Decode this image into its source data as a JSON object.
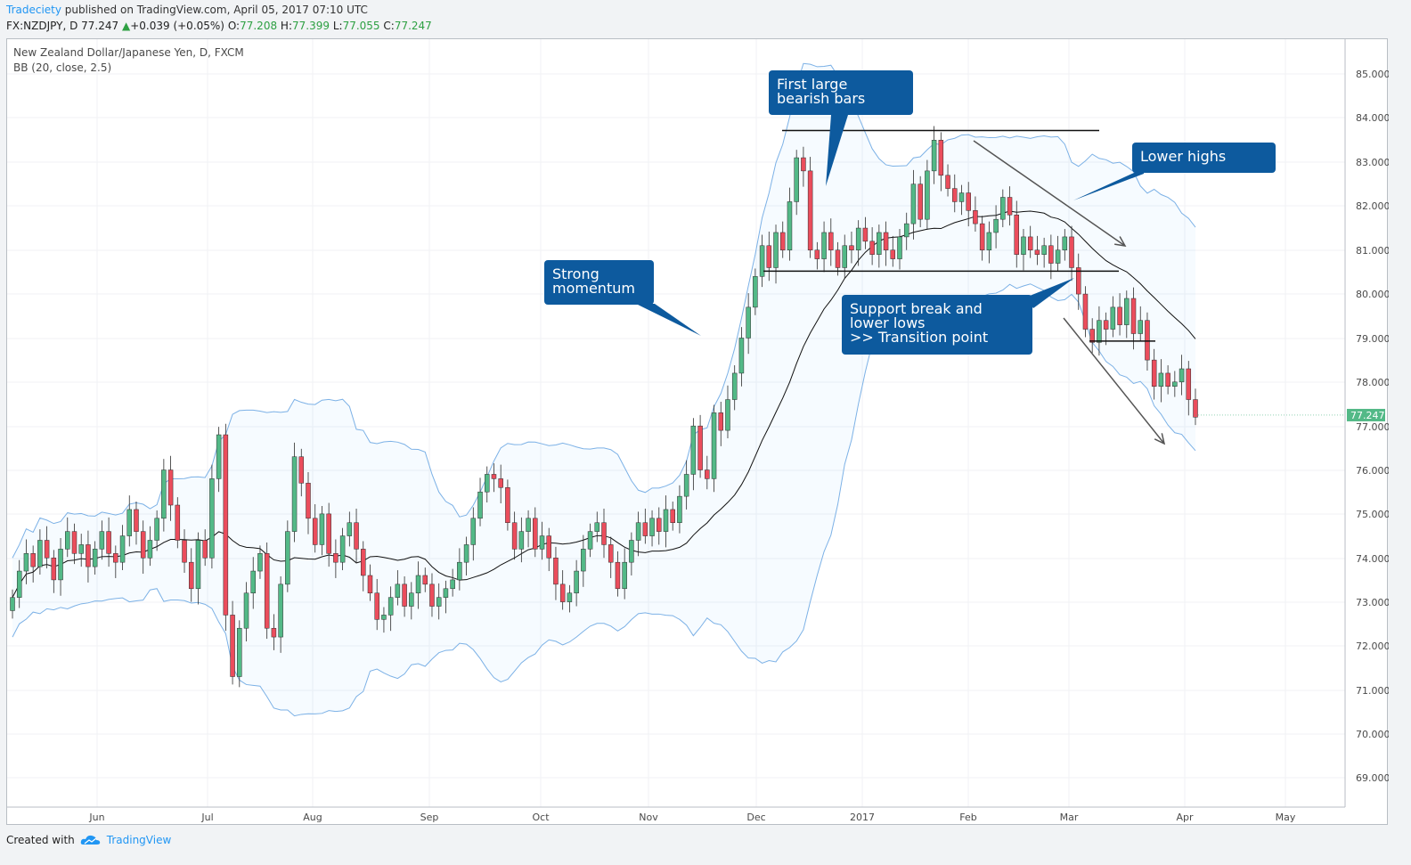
{
  "header": {
    "author": "Tradeciety",
    "published": " published on TradingView.com, April 05, 2017 07:10 UTC",
    "symbol": "FX:NZDJPY, D",
    "last": "77.247",
    "change": "+0.039 (+0.05%)",
    "o_label": "O:",
    "o_val": "77.208",
    "h_label": "H:",
    "h_val": "77.399",
    "l_label": "L:",
    "l_val": "77.055",
    "c_label": "C:",
    "c_val": "77.247"
  },
  "legend": {
    "title": "New Zealand Dollar/Japanese Yen, D, FXCM",
    "indicator": "BB (20, close, 2.5)"
  },
  "footer": {
    "created": "Created with",
    "brand": "TradingView"
  },
  "colors": {
    "up": "#53b987",
    "down": "#eb4d5c",
    "band": "#7cb1e6",
    "basis": "#111111",
    "callout": "#0d5a9e",
    "last_price": "#53b987"
  },
  "annotations": {
    "first_bearish": "First large\nbearish bars",
    "lower_highs": "Lower highs",
    "strong_momentum": "Strong\nmomentum",
    "support_break": "Support break and\nlower lows\n>> Transition point"
  },
  "chart_data": {
    "type": "candlestick",
    "y_ticks": [
      "85.000",
      "84.000",
      "83.000",
      "82.000",
      "81.000",
      "80.000",
      "79.000",
      "78.000",
      "77.000",
      "76.000",
      "75.000",
      "74.000",
      "73.000",
      "72.000",
      "71.000",
      "70.000",
      "69.000"
    ],
    "ylim": [
      68.5,
      85.5
    ],
    "x_labels": [
      "Jun",
      "Jul",
      "Aug",
      "Sep",
      "Oct",
      "Nov",
      "Dec",
      "2017",
      "Feb",
      "Mar",
      "Apr",
      "May"
    ],
    "last_price_label": "77.247",
    "levels": {
      "resistance": 83.72,
      "support": 80.52,
      "minor_support": 78.93
    },
    "closes": [
      73.1,
      73.7,
      74.1,
      73.8,
      74.4,
      74.0,
      73.5,
      74.2,
      74.6,
      74.1,
      74.3,
      73.8,
      74.2,
      74.6,
      74.1,
      73.9,
      74.5,
      75.1,
      74.6,
      74.0,
      74.4,
      74.9,
      76.0,
      75.2,
      74.4,
      73.9,
      73.3,
      74.4,
      74.0,
      75.8,
      76.8,
      72.7,
      71.3,
      72.4,
      73.2,
      73.7,
      74.1,
      72.4,
      72.2,
      73.4,
      74.6,
      76.3,
      75.7,
      74.9,
      74.3,
      75.0,
      74.1,
      73.9,
      74.5,
      74.8,
      74.2,
      73.6,
      73.2,
      72.6,
      72.7,
      73.1,
      73.4,
      72.9,
      73.2,
      73.6,
      73.4,
      72.9,
      73.1,
      73.3,
      73.5,
      73.9,
      74.3,
      74.9,
      75.5,
      75.9,
      75.8,
      75.6,
      74.8,
      74.2,
      74.6,
      74.9,
      74.2,
      74.5,
      74.0,
      73.4,
      73.0,
      73.2,
      73.7,
      74.2,
      74.6,
      74.8,
      74.3,
      73.9,
      73.3,
      73.9,
      74.4,
      74.8,
      74.5,
      74.9,
      74.6,
      75.1,
      74.8,
      75.4,
      75.9,
      77.0,
      76.0,
      75.8,
      77.3,
      76.9,
      77.6,
      78.2,
      79.0,
      79.7,
      80.4,
      81.1,
      80.6,
      81.4,
      81.0,
      82.1,
      83.1,
      82.8,
      81.0,
      80.8,
      81.4,
      81.0,
      80.6,
      81.1,
      81.0,
      81.5,
      81.2,
      80.9,
      81.4,
      81.0,
      80.8,
      81.3,
      81.6,
      82.5,
      81.7,
      82.8,
      83.5,
      82.7,
      82.4,
      82.1,
      82.3,
      81.9,
      81.6,
      81.0,
      81.4,
      81.7,
      82.2,
      81.8,
      80.9,
      81.3,
      81.0,
      80.9,
      81.1,
      80.7,
      81.0,
      81.3,
      80.6,
      80.0,
      79.2,
      78.9,
      79.4,
      79.2,
      79.7,
      79.3,
      79.9,
      79.1,
      79.4,
      78.5,
      77.9,
      78.2,
      77.9,
      78.0,
      78.3,
      77.6,
      77.2
    ]
  }
}
